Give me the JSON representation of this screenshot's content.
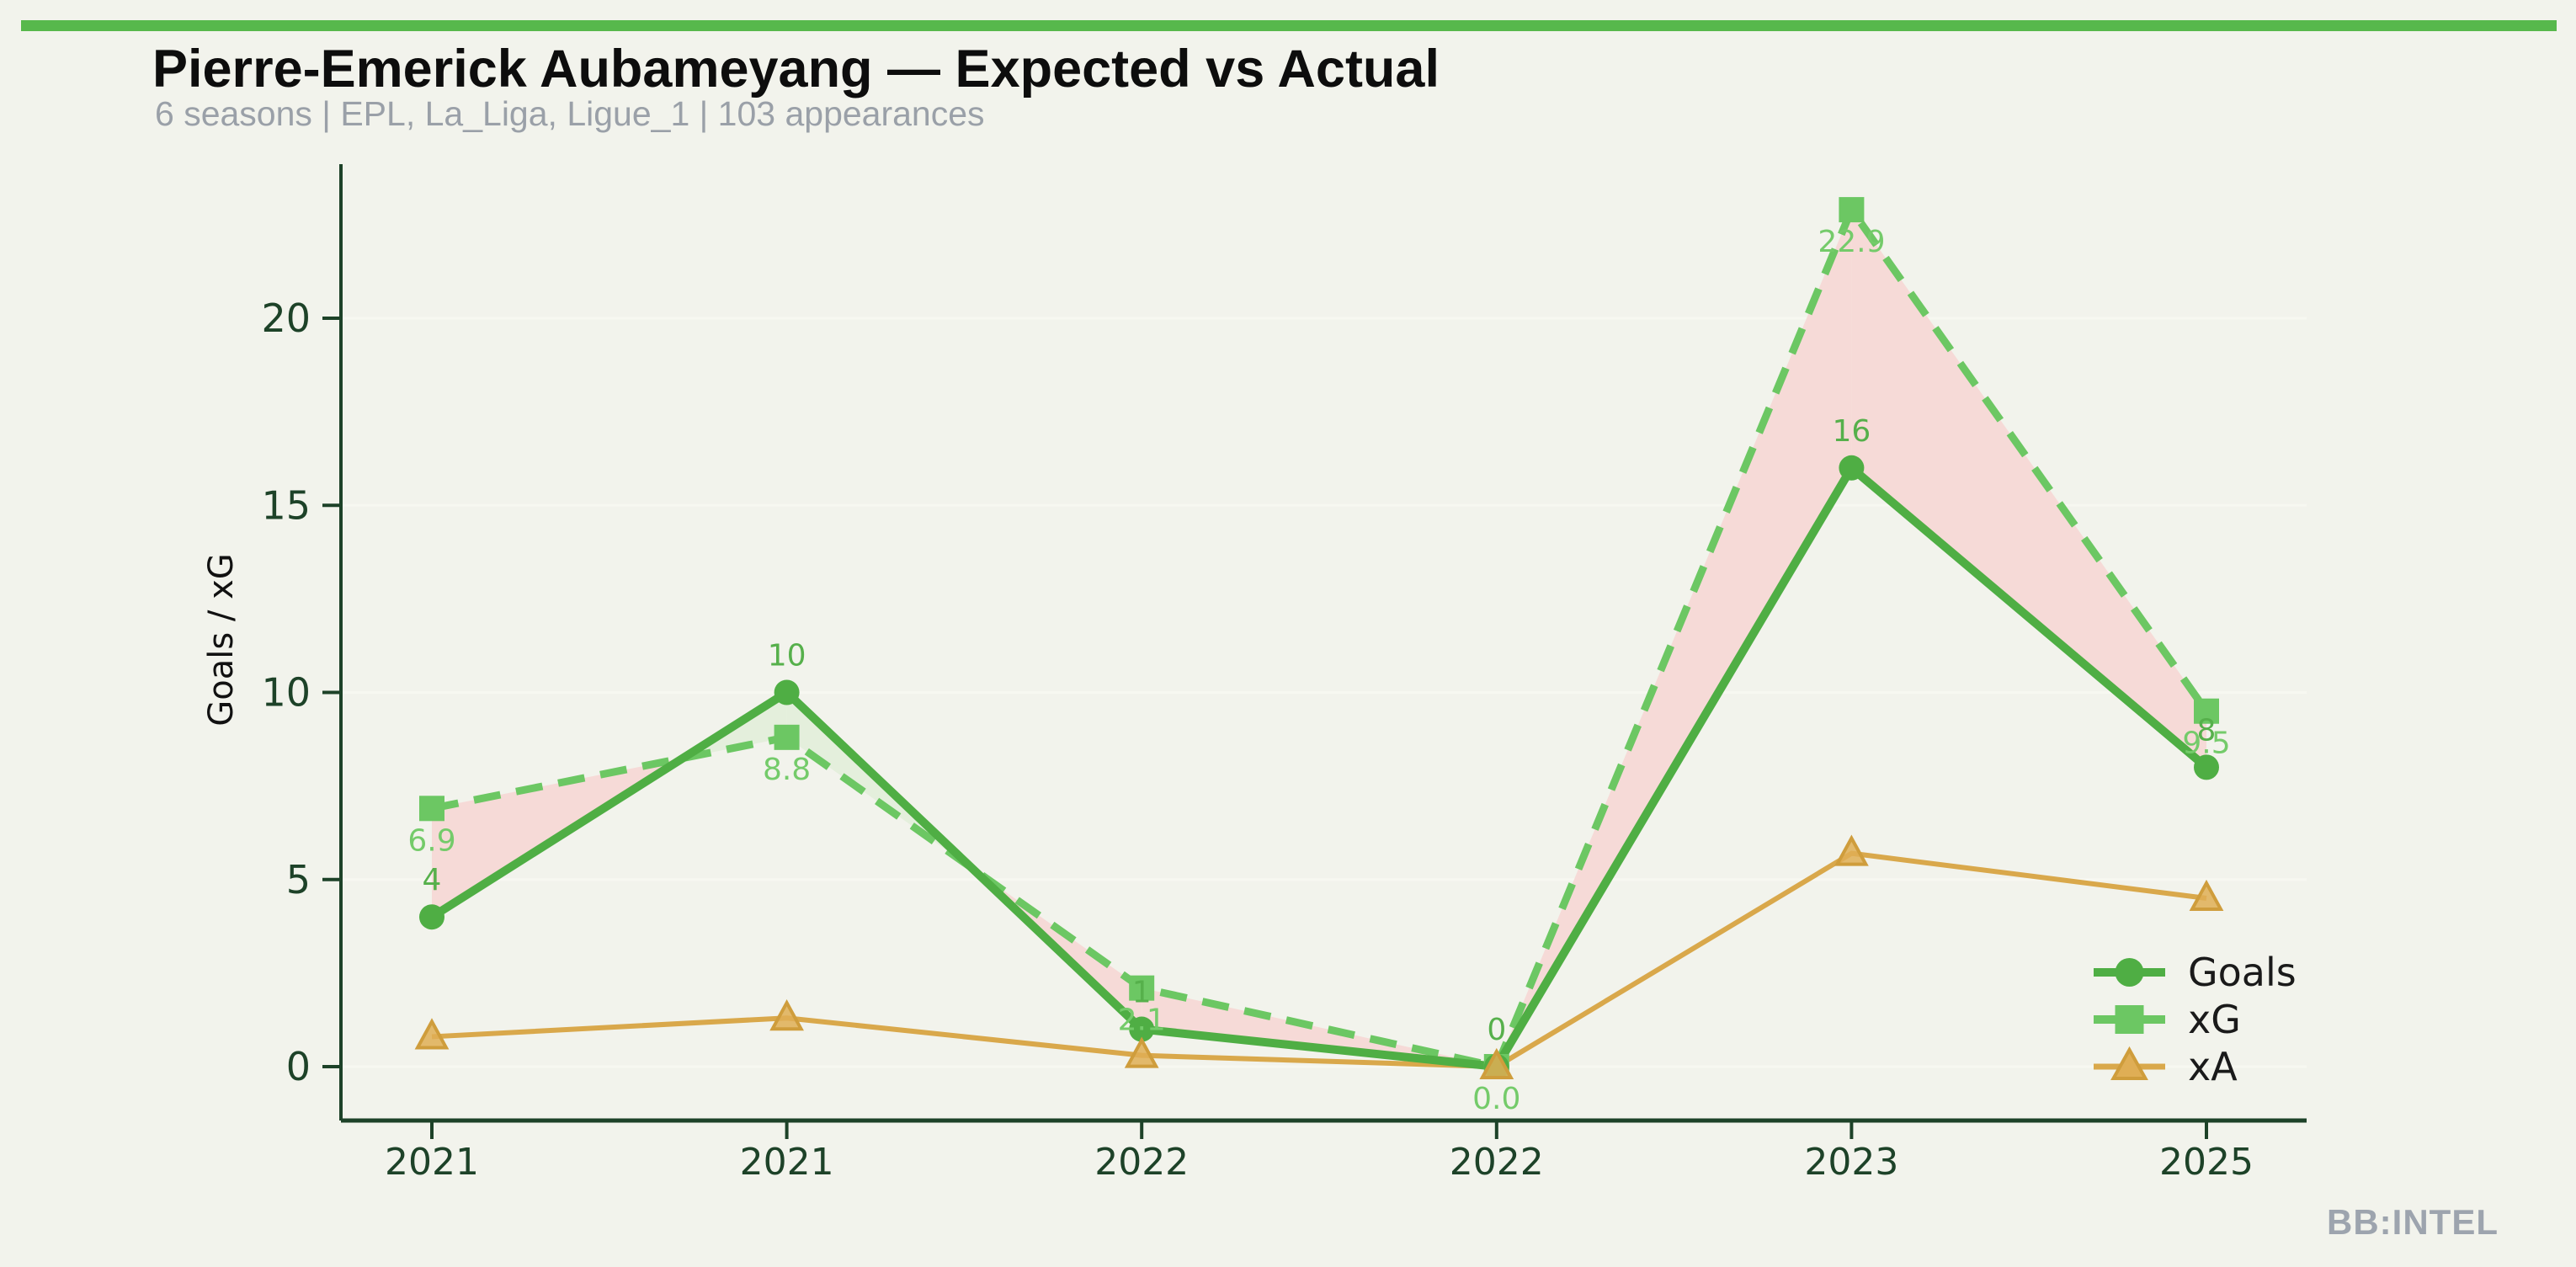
{
  "header": {
    "title": "Pierre-Emerick Aubameyang — Expected vs Actual",
    "subtitle": "6 seasons | EPL, La_Liga, Ligue_1 | 103 appearances"
  },
  "watermark": "BB:INTEL",
  "colors": {
    "background": "#f2f3ec",
    "header_bar": "#57b84c",
    "axis": "#1d4228",
    "gridline": "#f7f8f1",
    "goals": "#4fae44",
    "xg": "#6cc763",
    "xa_line": "#d9a84b",
    "xa_fill": "#dfae55",
    "xa_stroke": "#cf9d3c",
    "fill_overperform": "#e4efdc",
    "fill_underperform": "#f6dad7",
    "goals_label": "#56b04b",
    "xg_label": "#74cb6a",
    "legend_text": "#1a1a1a",
    "title_text": "#0d0d0d",
    "subtitle_text": "#9aa0a8",
    "watermark_text": "#9da4ae"
  },
  "chart_data": {
    "type": "line",
    "title": "Pierre-Emerick Aubameyang — Expected vs Actual",
    "subtitle": "6 seasons | EPL, La_Liga, Ligue_1 | 103 appearances",
    "categories": [
      "2021",
      "2021",
      "2022",
      "2022",
      "2023",
      "2025"
    ],
    "xlabel": "",
    "ylabel": "Goals / xG",
    "ylim": [
      0,
      23
    ],
    "yticks": [
      0,
      5,
      10,
      15,
      20
    ],
    "grid": "horizontal-faint",
    "legend_position": "bottom-right",
    "series": [
      {
        "name": "Goals",
        "marker": "circle",
        "line": "solid",
        "values": [
          4,
          10,
          1,
          0,
          16,
          8
        ],
        "point_labels": [
          "4",
          "10",
          "1",
          "0",
          "16",
          "8"
        ]
      },
      {
        "name": "xG",
        "marker": "square",
        "line": "dashed",
        "values": [
          6.9,
          8.8,
          2.1,
          0.0,
          22.9,
          9.5
        ],
        "point_labels": [
          "6.9",
          "8.8",
          "2.1",
          "0.0",
          "22.9",
          "9.5"
        ]
      },
      {
        "name": "xA",
        "marker": "triangle",
        "line": "solid",
        "values": [
          0.8,
          1.3,
          0.3,
          0.0,
          5.7,
          4.5
        ],
        "point_labels": []
      }
    ],
    "fill_between": {
      "series_a": "Goals",
      "series_b": "xG",
      "a_above_b_meaning": "overperformance (green)",
      "b_above_a_meaning": "underperformance (pink)"
    },
    "legend_entries": [
      "Goals",
      "xG",
      "xA"
    ]
  }
}
